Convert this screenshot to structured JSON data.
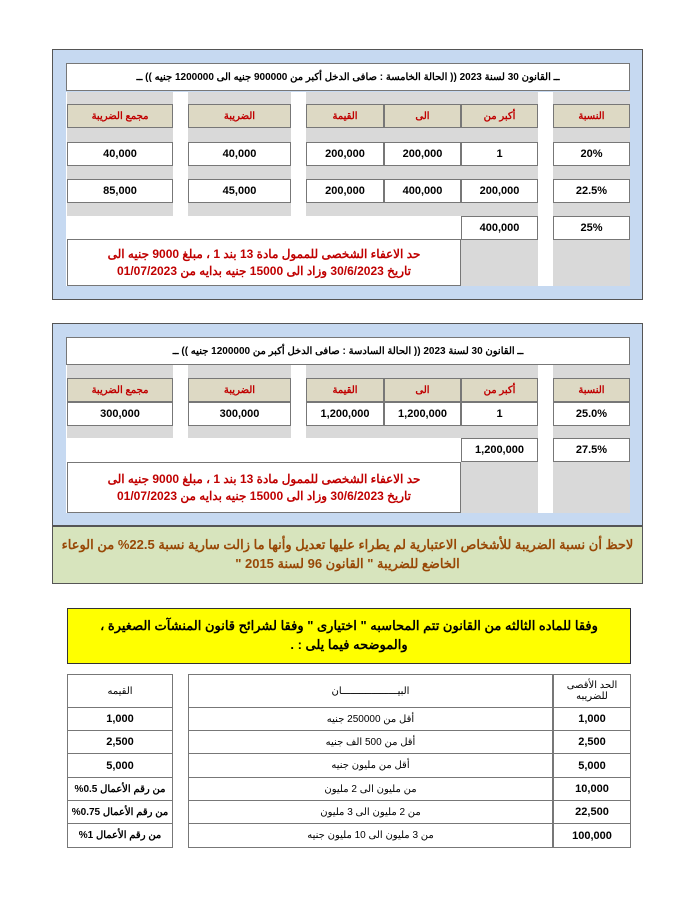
{
  "case5": {
    "title": "ــ القانون 30 لسنة 2023 (( الحالة الخامسة : صافى الدخل أكبر من 900000 جنيه الى 1200000 جنيه )) ــ",
    "headers": {
      "rate": "النسبة",
      "from": "أكبر من",
      "to": "الى",
      "value": "القيمة",
      "tax": "الضريبة",
      "total": "مجمع الضريبة"
    },
    "rows": [
      {
        "rate": "20%",
        "from": "1",
        "to": "200,000",
        "value": "200,000",
        "tax": "40,000",
        "total": "40,000"
      },
      {
        "rate": "22.5%",
        "from": "200,000",
        "to": "400,000",
        "value": "200,000",
        "tax": "45,000",
        "total": "85,000"
      },
      {
        "rate": "25%",
        "from": "400,000"
      }
    ],
    "note": "حد الاعفاء الشخصى للممول مادة 13 بند 1 ، مبلغ 9000 جنيه الى تاريخ 30/6/2023 وزاد الى 15000 جنيه بدايه من 01/07/2023"
  },
  "case6": {
    "title": "ــ القانون 30 لسنة 2023 (( الحالة السادسة : صافى الدخل أكبر من 1200000 جنيه )) ــ",
    "headers": {
      "rate": "النسبة",
      "from": "أكبر من",
      "to": "الى",
      "value": "القيمة",
      "tax": "الضريبة",
      "total": "مجمع الضريبة"
    },
    "rows": [
      {
        "rate": "25.0%",
        "from": "1",
        "to": "1,200,000",
        "value": "1,200,000",
        "tax": "300,000",
        "total": "300,000"
      },
      {
        "rate": "27.5%",
        "from": "1,200,000"
      }
    ],
    "note": "حد الاعفاء الشخصى للممول مادة 13 بند 1 ، مبلغ 9000 جنيه الى تاريخ 30/6/2023 وزاد الى 15000 جنيه بدايه من 01/07/2023"
  },
  "legal_note": "لاحظ أن نسبة الضريبة للأشخاص الاعتبارية لم يطراء عليها تعديل وأنها ما زالت سارية  نسبة 22.5% من الوعاء الخاضع للضريبة \" القانون 96 لسنة 2015 \"",
  "small_business": {
    "intro": "وفقا للماده الثالثه من القانون تتم المحاسبه \" اختيارى \" وفقا لشرائح قانون المنشآت الصغيرة ، والموضحه فيما يلى : .",
    "headers": {
      "max": "الحد الأقصى للضريبه",
      "desc": "البيـــــــــــــــــــان",
      "value": "القيمه"
    },
    "rows": [
      {
        "max": "1,000",
        "desc": "أقل من 250000 جنيه",
        "value": "1,000"
      },
      {
        "max": "2,500",
        "desc": "أقل من 500 الف جنيه",
        "value": "2,500"
      },
      {
        "max": "5,000",
        "desc": "أقل من مليون جنيه",
        "value": "5,000"
      },
      {
        "max": "10,000",
        "desc": "من مليون الى 2 مليون",
        "value": "من رقم الأعمال 0.5%"
      },
      {
        "max": "22,500",
        "desc": "من 2 مليون الى 3 مليون",
        "value": "من رقم الأعمال 0.75%"
      },
      {
        "max": "100,000",
        "desc": "من 3 مليون الى 10 مليون جنيه",
        "value": "من رقم الأعمال 1%"
      }
    ]
  },
  "colors": {
    "panel": "#c6d9f1",
    "header_text": "#c00000",
    "note_green": "#d7e4bd",
    "highlight": "#ffff00"
  }
}
